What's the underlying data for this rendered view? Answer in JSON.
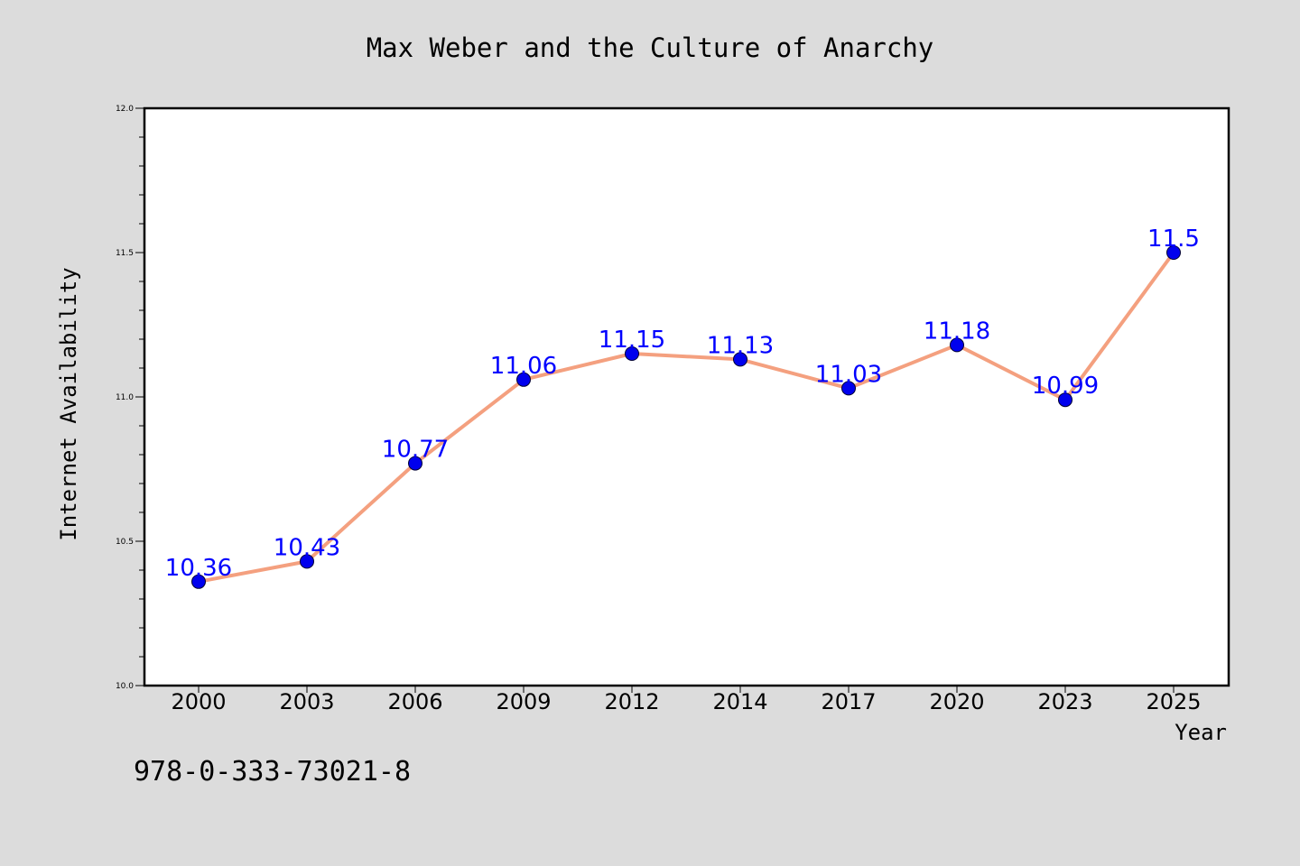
{
  "chart_data": {
    "type": "line",
    "title": "Max Weber and the Culture of Anarchy",
    "xlabel": "Year",
    "ylabel": "Internet Availability",
    "categories": [
      "2000",
      "2003",
      "2006",
      "2009",
      "2012",
      "2014",
      "2017",
      "2020",
      "2023",
      "2025"
    ],
    "series": [
      {
        "values": [
          10.36,
          10.43,
          10.77,
          11.06,
          11.15,
          11.13,
          11.03,
          11.18,
          10.99,
          11.5
        ]
      }
    ],
    "data_labels": [
      "10.36",
      "10.43",
      "10.77",
      "11.06",
      "11.15",
      "11.13",
      "11.03",
      "11.18",
      "10.99",
      "11.5"
    ],
    "ylim": [
      10.0,
      12.0
    ],
    "yticks": [
      "10.0",
      "10.5",
      "11.0",
      "11.5",
      "12.0"
    ],
    "grid": false,
    "line_color": "#f4a07f",
    "marker_color": "#0000ee"
  },
  "footnote": "978-0-333-73021-8"
}
